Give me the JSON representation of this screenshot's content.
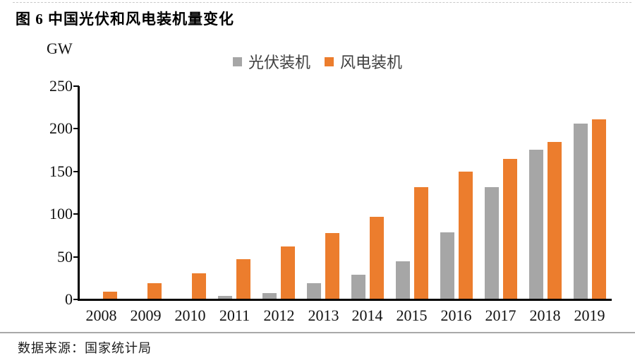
{
  "title": "图 6 中国光伏和风电装机量变化",
  "footer": {
    "source": "数据来源：国家统计局"
  },
  "colors": {
    "solar_gray": "#A6A6A6",
    "wind_orange": "#EC7D2D",
    "axis_black": "#000000",
    "divider_gray": "#A9A9A9"
  },
  "chart_data": {
    "type": "bar",
    "title": "图 6 中国光伏和风电装机量变化",
    "unit_label": "GW",
    "xlabel": "",
    "ylabel": "GW",
    "ylim": [
      0,
      250
    ],
    "yticks": [
      0,
      50,
      100,
      150,
      200,
      250
    ],
    "grid": false,
    "legend_position": "top-center",
    "categories": [
      "2008",
      "2009",
      "2010",
      "2011",
      "2012",
      "2013",
      "2014",
      "2015",
      "2016",
      "2017",
      "2018",
      "2019"
    ],
    "series": [
      {
        "name": "光伏装机",
        "key": "solar",
        "color": "#A6A6A6",
        "values": [
          0,
          0,
          0,
          3,
          7,
          18,
          28,
          44,
          78,
          131,
          175,
          205
        ]
      },
      {
        "name": "风电装机",
        "key": "wind",
        "color": "#EC7D2D",
        "values": [
          8,
          18,
          30,
          46,
          61,
          77,
          96,
          131,
          149,
          164,
          184,
          210
        ]
      }
    ]
  }
}
